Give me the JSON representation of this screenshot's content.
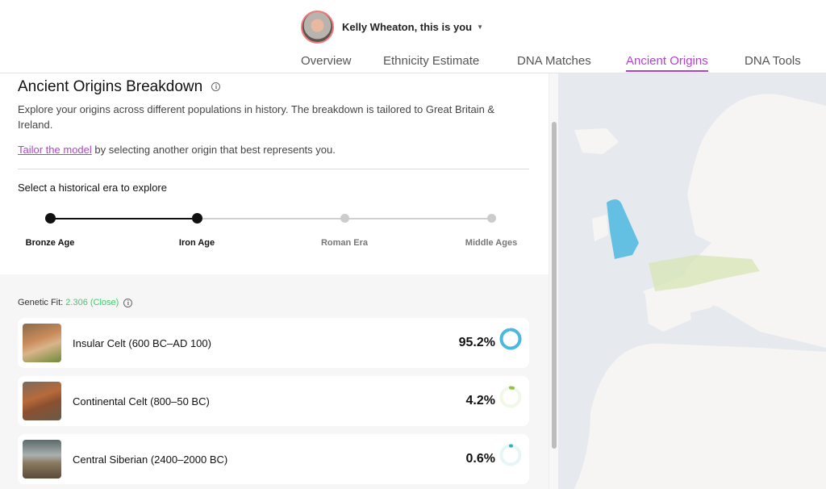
{
  "header": {
    "user_label": "Kelly Wheaton, this is you"
  },
  "tabs": [
    {
      "label": "Overview"
    },
    {
      "label": "Ethnicity Estimate"
    },
    {
      "label": "DNA Matches"
    },
    {
      "label": "Ancient Origins",
      "active": true
    },
    {
      "label": "DNA Tools"
    }
  ],
  "main": {
    "title": "Ancient Origins Breakdown",
    "description": "Explore your origins across different populations in history. The breakdown is tailored to Great Britain & Ireland.",
    "tailor_link": "Tailor the model",
    "tailor_rest": " by selecting another origin that best represents you.",
    "era_title": "Select a historical era to explore",
    "eras": [
      {
        "label": "Bronze Age",
        "active": true
      },
      {
        "label": "Iron Age",
        "active": true,
        "selected": true
      },
      {
        "label": "Roman Era",
        "active": false
      },
      {
        "label": "Middle Ages",
        "active": false
      }
    ],
    "fit_label": "Genetic Fit: ",
    "fit_value": "2.306 (Close)",
    "origins": [
      {
        "name": "Insular Celt (600 BC–AD 100)",
        "percent": "95.2%",
        "value": 95.2,
        "color": "#4bb8e0"
      },
      {
        "name": "Continental Celt (800–50 BC)",
        "percent": "4.2%",
        "value": 4.2,
        "color": "#8cc63f"
      },
      {
        "name": "Central Siberian (2400–2000 BC)",
        "percent": "0.6%",
        "value": 0.6,
        "color": "#2bb5b0"
      }
    ]
  },
  "colors": {
    "accent": "#b43fd6",
    "fit": "#3dcc6a"
  }
}
